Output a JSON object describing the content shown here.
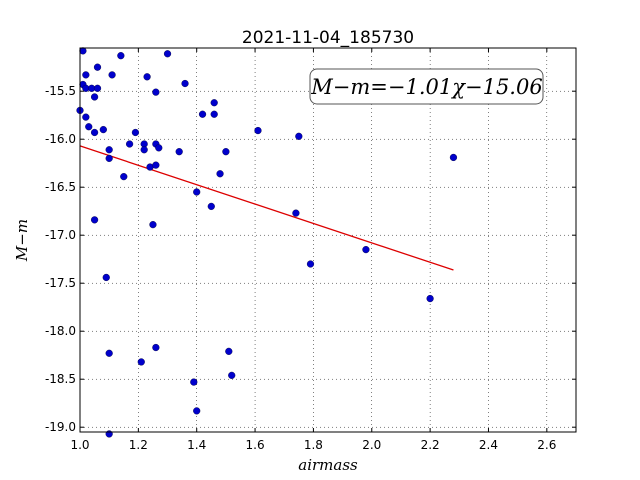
{
  "chart_data": {
    "type": "scatter",
    "title": "2021-11-04_185730",
    "xlabel": "airmass",
    "ylabel": "M−m",
    "xlim": [
      1.0,
      2.7
    ],
    "ylim": [
      -19.05,
      -15.05
    ],
    "y_inverted": false,
    "xticks": [
      "1.0",
      "1.2",
      "1.4",
      "1.6",
      "1.8",
      "2.0",
      "2.2",
      "2.4",
      "2.6"
    ],
    "yticks": [
      "-15.5",
      "-16.0",
      "-16.5",
      "-17.0",
      "-17.5",
      "-18.0",
      "-18.5",
      "-19.0"
    ],
    "grid": true,
    "annotation": "M−m=−1.01χ−15.06",
    "marker_color": "#0000cc",
    "fit_color": "#dd0000",
    "points": [
      [
        1.0,
        -15.7
      ],
      [
        1.01,
        -15.08
      ],
      [
        1.01,
        -15.43
      ],
      [
        1.02,
        -15.77
      ],
      [
        1.02,
        -15.47
      ],
      [
        1.02,
        -15.33
      ],
      [
        1.03,
        -15.87
      ],
      [
        1.04,
        -15.47
      ],
      [
        1.05,
        -15.56
      ],
      [
        1.05,
        -15.93
      ],
      [
        1.05,
        -16.84
      ],
      [
        1.06,
        -15.25
      ],
      [
        1.06,
        -15.47
      ],
      [
        1.08,
        -15.9
      ],
      [
        1.09,
        -17.44
      ],
      [
        1.1,
        -16.2
      ],
      [
        1.1,
        -16.11
      ],
      [
        1.1,
        -18.23
      ],
      [
        1.1,
        -19.07
      ],
      [
        1.11,
        -15.33
      ],
      [
        1.14,
        -15.13
      ],
      [
        1.15,
        -16.39
      ],
      [
        1.17,
        -16.05
      ],
      [
        1.19,
        -15.93
      ],
      [
        1.21,
        -18.32
      ],
      [
        1.22,
        -16.05
      ],
      [
        1.22,
        -16.11
      ],
      [
        1.23,
        -15.35
      ],
      [
        1.24,
        -16.29
      ],
      [
        1.25,
        -16.89
      ],
      [
        1.26,
        -15.51
      ],
      [
        1.26,
        -16.05
      ],
      [
        1.26,
        -16.27
      ],
      [
        1.26,
        -18.17
      ],
      [
        1.27,
        -16.09
      ],
      [
        1.3,
        -15.11
      ],
      [
        1.34,
        -16.13
      ],
      [
        1.36,
        -15.42
      ],
      [
        1.39,
        -18.53
      ],
      [
        1.4,
        -18.83
      ],
      [
        1.4,
        -16.55
      ],
      [
        1.42,
        -15.74
      ],
      [
        1.45,
        -16.7
      ],
      [
        1.46,
        -15.62
      ],
      [
        1.46,
        -15.74
      ],
      [
        1.48,
        -16.36
      ],
      [
        1.5,
        -16.13
      ],
      [
        1.51,
        -18.21
      ],
      [
        1.52,
        -18.46
      ],
      [
        1.61,
        -15.91
      ],
      [
        1.74,
        -16.77
      ],
      [
        1.75,
        -15.97
      ],
      [
        1.79,
        -17.3
      ],
      [
        1.98,
        -17.15
      ],
      [
        2.2,
        -17.66
      ],
      [
        2.28,
        -16.19
      ]
    ],
    "fit": {
      "slope": -1.01,
      "intercept": -15.06,
      "x_range": [
        1.0,
        2.28
      ]
    }
  }
}
